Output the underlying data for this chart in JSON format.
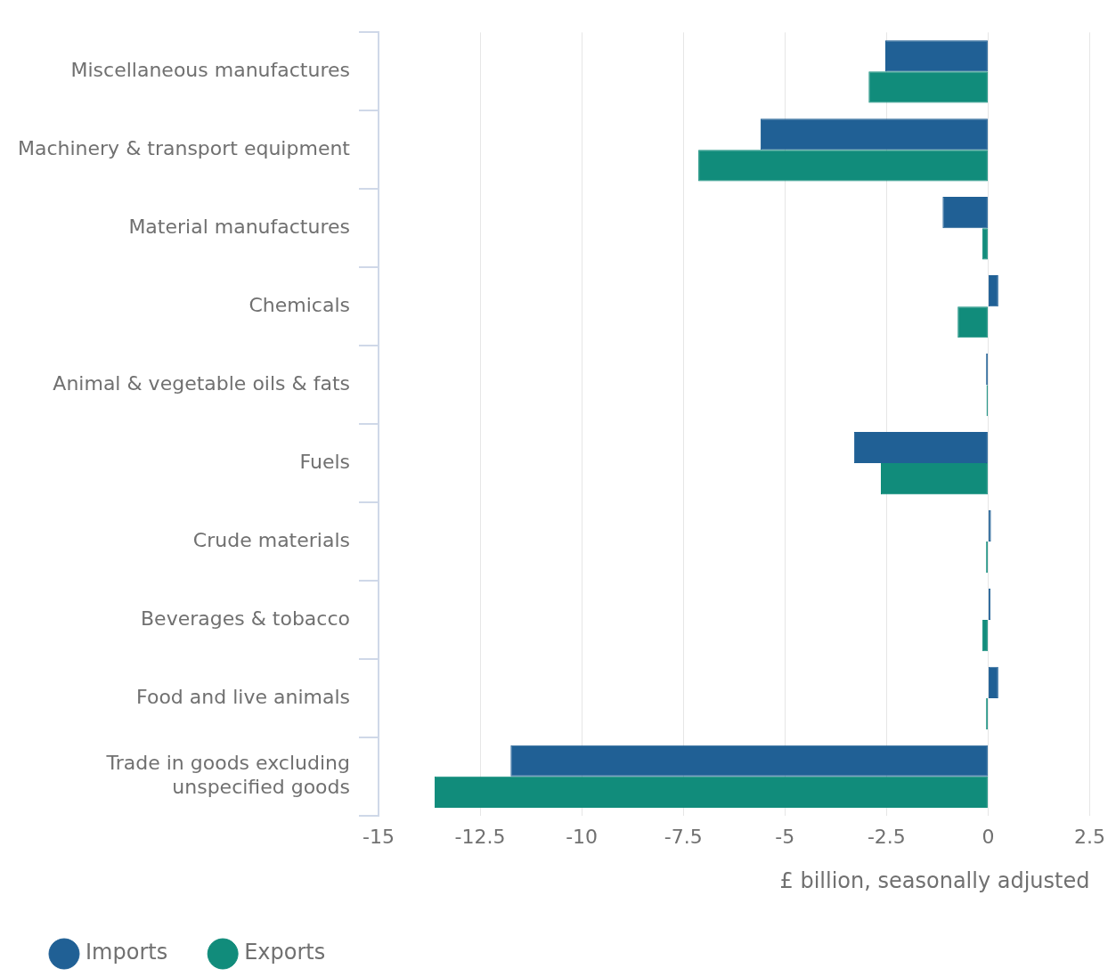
{
  "chart_data": {
    "type": "bar",
    "orientation": "horizontal",
    "categories": [
      "Miscellaneous manufactures",
      "Machinery & transport equipment",
      "Material manufactures",
      "Chemicals",
      "Animal & vegetable oils & fats",
      "Fuels",
      "Crude materials",
      "Beverages & tobacco",
      "Food and live animals",
      "Trade in goods excluding unspecified goods"
    ],
    "series": [
      {
        "name": "Imports",
        "color": "#206095",
        "values": [
          -2.53,
          -5.6,
          -1.12,
          0.25,
          -0.05,
          -3.3,
          0.07,
          0.06,
          0.25,
          -11.75
        ]
      },
      {
        "name": "Exports",
        "color": "#118c7b",
        "values": [
          -2.94,
          -7.13,
          -0.14,
          -0.75,
          -0.04,
          -2.64,
          -0.05,
          -0.14,
          -0.05,
          -13.62
        ]
      }
    ],
    "xlabel": "£ billion, seasonally adjusted",
    "xlim": [
      -15,
      2.5
    ],
    "xticks": [
      -15,
      -12.5,
      -10,
      -7.5,
      -5,
      -2.5,
      0,
      2.5
    ],
    "grid": "x",
    "legend": "bottom left"
  }
}
